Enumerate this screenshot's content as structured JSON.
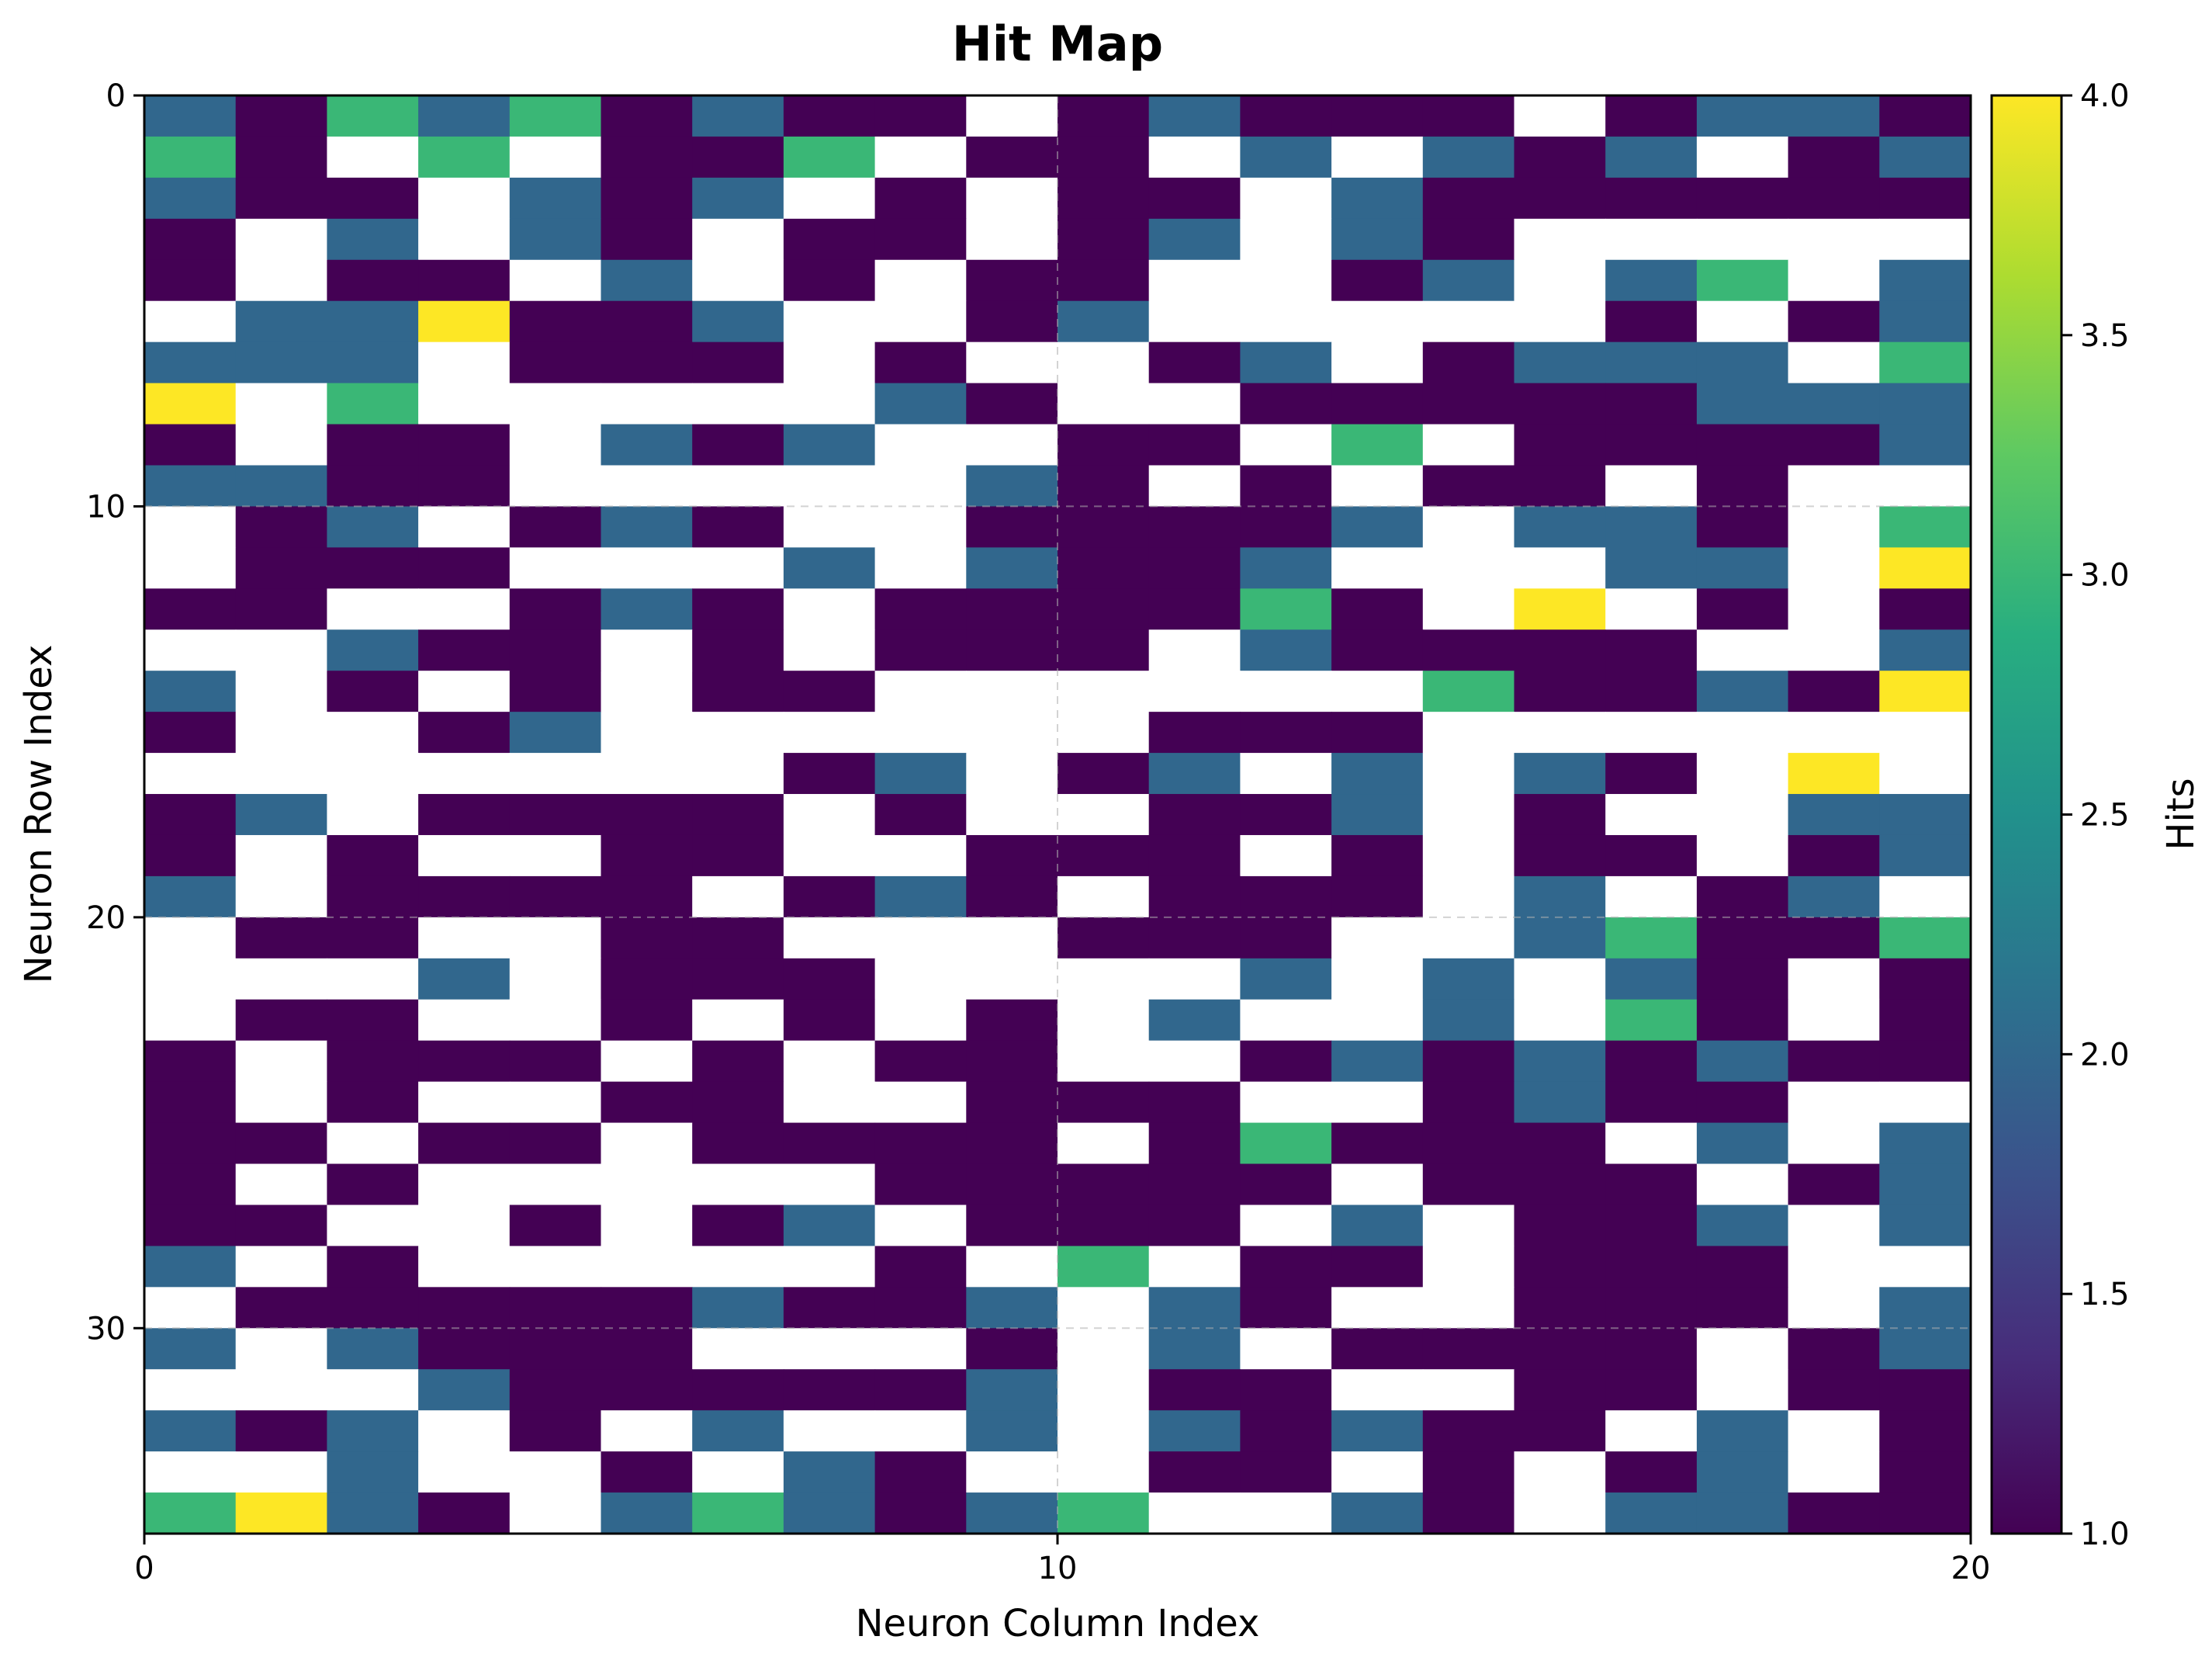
{
  "chart_data": {
    "type": "heatmap",
    "title": "Hit Map",
    "xlabel": "Neuron Column Index",
    "ylabel": "Neuron Row Index",
    "colorbar_label": "Hits",
    "colormap": "viridis",
    "empty_color": "#ffffff",
    "n_cols": 20,
    "n_rows": 35,
    "xlim": [
      0,
      20
    ],
    "ylim": [
      35,
      0
    ],
    "x_ticks": [
      0,
      10,
      20
    ],
    "y_ticks": [
      0,
      10,
      20,
      30
    ],
    "color_range": [
      1.0,
      4.0
    ],
    "colorbar_ticks": [
      "1.0",
      "1.5",
      "2.0",
      "2.5",
      "3.0",
      "3.5",
      "4.0"
    ],
    "grid": true,
    "values": [
      [
        2,
        1,
        3,
        2,
        3,
        1,
        2,
        1,
        1,
        0,
        1,
        2,
        1,
        1,
        1,
        0,
        1,
        2,
        2,
        1
      ],
      [
        3,
        1,
        0,
        3,
        0,
        1,
        1,
        3,
        0,
        1,
        1,
        0,
        2,
        0,
        2,
        1,
        2,
        0,
        1,
        2
      ],
      [
        2,
        1,
        1,
        0,
        2,
        1,
        2,
        0,
        1,
        0,
        1,
        1,
        0,
        2,
        1,
        1,
        1,
        1,
        1,
        1
      ],
      [
        1,
        0,
        2,
        0,
        2,
        1,
        0,
        1,
        1,
        0,
        1,
        2,
        0,
        2,
        1,
        0,
        0,
        0,
        0,
        0
      ],
      [
        1,
        0,
        1,
        1,
        0,
        2,
        0,
        1,
        0,
        1,
        1,
        0,
        0,
        1,
        2,
        0,
        2,
        3,
        0,
        2
      ],
      [
        0,
        2,
        2,
        4,
        1,
        1,
        2,
        0,
        0,
        1,
        2,
        0,
        0,
        0,
        0,
        0,
        1,
        0,
        1,
        2
      ],
      [
        2,
        2,
        2,
        0,
        1,
        1,
        1,
        0,
        1,
        0,
        0,
        1,
        2,
        0,
        1,
        2,
        2,
        2,
        0,
        3
      ],
      [
        4,
        0,
        3,
        0,
        0,
        0,
        0,
        0,
        2,
        1,
        0,
        0,
        1,
        1,
        1,
        1,
        1,
        2,
        2,
        2
      ],
      [
        1,
        0,
        1,
        1,
        0,
        2,
        1,
        2,
        0,
        0,
        1,
        1,
        0,
        3,
        0,
        1,
        1,
        1,
        1,
        2
      ],
      [
        2,
        2,
        1,
        1,
        0,
        0,
        0,
        0,
        0,
        2,
        1,
        0,
        1,
        0,
        1,
        1,
        0,
        1,
        0,
        0
      ],
      [
        0,
        1,
        2,
        0,
        1,
        2,
        1,
        0,
        0,
        1,
        1,
        1,
        1,
        2,
        0,
        2,
        2,
        1,
        0,
        3
      ],
      [
        0,
        1,
        1,
        1,
        0,
        0,
        0,
        2,
        0,
        2,
        1,
        1,
        2,
        0,
        0,
        0,
        2,
        2,
        0,
        4
      ],
      [
        1,
        1,
        0,
        0,
        1,
        2,
        1,
        0,
        1,
        1,
        1,
        1,
        3,
        1,
        0,
        4,
        0,
        1,
        0,
        1
      ],
      [
        0,
        0,
        2,
        1,
        1,
        0,
        1,
        0,
        1,
        1,
        1,
        0,
        2,
        1,
        1,
        1,
        1,
        0,
        0,
        2
      ],
      [
        2,
        0,
        1,
        0,
        1,
        0,
        1,
        1,
        0,
        0,
        0,
        0,
        0,
        0,
        3,
        1,
        1,
        2,
        1,
        4
      ],
      [
        1,
        0,
        0,
        1,
        2,
        0,
        0,
        0,
        0,
        0,
        0,
        1,
        1,
        1,
        0,
        0,
        0,
        0,
        0,
        0
      ],
      [
        0,
        0,
        0,
        0,
        0,
        0,
        0,
        1,
        2,
        0,
        1,
        2,
        0,
        2,
        0,
        2,
        1,
        0,
        4,
        0
      ],
      [
        1,
        2,
        0,
        1,
        1,
        1,
        1,
        0,
        1,
        0,
        0,
        1,
        1,
        2,
        0,
        1,
        0,
        0,
        2,
        2
      ],
      [
        1,
        0,
        1,
        0,
        0,
        1,
        1,
        0,
        0,
        1,
        1,
        1,
        0,
        1,
        0,
        1,
        1,
        0,
        1,
        2
      ],
      [
        2,
        0,
        1,
        1,
        1,
        1,
        0,
        1,
        2,
        1,
        0,
        1,
        1,
        1,
        0,
        2,
        0,
        1,
        2,
        0
      ],
      [
        0,
        1,
        1,
        0,
        0,
        1,
        1,
        0,
        0,
        0,
        1,
        1,
        1,
        0,
        0,
        2,
        3,
        1,
        1,
        3
      ],
      [
        0,
        0,
        0,
        2,
        0,
        1,
        1,
        1,
        0,
        0,
        0,
        0,
        2,
        0,
        2,
        0,
        2,
        1,
        0,
        1
      ],
      [
        0,
        1,
        1,
        0,
        0,
        1,
        0,
        1,
        0,
        1,
        0,
        2,
        0,
        0,
        2,
        0,
        3,
        1,
        0,
        1
      ],
      [
        1,
        0,
        1,
        1,
        1,
        0,
        1,
        0,
        1,
        1,
        0,
        0,
        1,
        2,
        1,
        2,
        1,
        2,
        1,
        1
      ],
      [
        1,
        0,
        1,
        0,
        0,
        1,
        1,
        0,
        0,
        1,
        1,
        1,
        0,
        0,
        1,
        2,
        1,
        1,
        0,
        0
      ],
      [
        1,
        1,
        0,
        1,
        1,
        0,
        1,
        1,
        1,
        1,
        0,
        1,
        3,
        1,
        1,
        1,
        0,
        2,
        0,
        2
      ],
      [
        1,
        0,
        1,
        0,
        0,
        0,
        0,
        0,
        1,
        1,
        1,
        1,
        1,
        0,
        1,
        1,
        1,
        0,
        1,
        2
      ],
      [
        1,
        1,
        0,
        0,
        1,
        0,
        1,
        2,
        0,
        1,
        1,
        1,
        0,
        2,
        0,
        1,
        1,
        2,
        0,
        2
      ],
      [
        2,
        0,
        1,
        0,
        0,
        0,
        0,
        0,
        1,
        0,
        3,
        0,
        1,
        1,
        0,
        1,
        1,
        1,
        0,
        0
      ],
      [
        0,
        1,
        1,
        1,
        1,
        1,
        2,
        1,
        1,
        2,
        0,
        2,
        1,
        0,
        0,
        1,
        1,
        1,
        0,
        2
      ],
      [
        2,
        0,
        2,
        1,
        1,
        1,
        0,
        0,
        0,
        1,
        0,
        2,
        0,
        1,
        1,
        1,
        1,
        0,
        1,
        2
      ],
      [
        0,
        0,
        0,
        2,
        1,
        1,
        1,
        1,
        1,
        2,
        0,
        1,
        1,
        0,
        0,
        1,
        1,
        0,
        1,
        1
      ],
      [
        2,
        1,
        2,
        0,
        1,
        0,
        2,
        0,
        0,
        2,
        0,
        2,
        1,
        2,
        1,
        1,
        0,
        2,
        0,
        1
      ],
      [
        0,
        0,
        2,
        0,
        0,
        1,
        0,
        2,
        1,
        0,
        0,
        1,
        1,
        0,
        1,
        0,
        1,
        2,
        0,
        1
      ],
      [
        3,
        4,
        2,
        1,
        0,
        2,
        3,
        2,
        1,
        2,
        3,
        0,
        0,
        2,
        1,
        0,
        2,
        2,
        1,
        1
      ]
    ]
  }
}
